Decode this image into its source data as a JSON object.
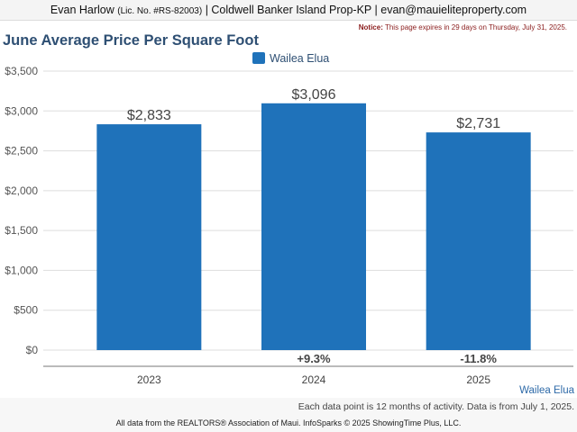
{
  "header": {
    "agent_name": "Evan Harlow",
    "license": "(Lic. No. #RS-82003)",
    "brokerage_and_email": "| Coldwell Banker Island Prop-KP | evan@mauieliteproperty.com"
  },
  "notice": {
    "label": "Notice:",
    "text": "This page expires in 29 days on Thursday, July 31, 2025."
  },
  "chart_data": {
    "type": "bar",
    "title": "June Average Price Per Square Foot",
    "categories": [
      "2023",
      "2024",
      "2025"
    ],
    "series": [
      {
        "name": "Wailea Elua",
        "values": [
          2833,
          3096,
          2731
        ],
        "color": "#1f72ba"
      }
    ],
    "data_labels": [
      "$2,833",
      "$3,096",
      "$2,731"
    ],
    "change_labels": [
      "",
      "+9.3%",
      "-11.8%"
    ],
    "y_ticks": [
      0,
      500,
      1000,
      1500,
      2000,
      2500,
      3000,
      3500
    ],
    "y_tick_labels": [
      "$0",
      "$500",
      "$1,000",
      "$1,500",
      "$2,000",
      "$2,500",
      "$3,000",
      "$3,500"
    ],
    "ylim": [
      0,
      3500
    ],
    "grid": true,
    "legend_position": "top-center",
    "xlabel": "",
    "ylabel": ""
  },
  "series_caption": "Wailea Elua",
  "footnote": "Each data point is 12 months of activity. Data is from July 1, 2025.",
  "copyright": "All data from the REALTORS® Association of Maui. InfoSparks © 2025 ShowingTime Plus, LLC."
}
